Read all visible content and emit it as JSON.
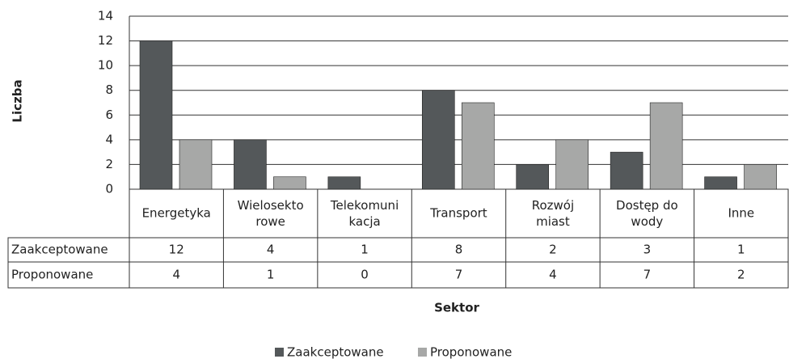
{
  "chart_data": {
    "type": "bar",
    "ylabel": "Liczba",
    "xlabel": "Sektor",
    "categories": [
      "Energetyka",
      "Wielosekto\nrowe",
      "Telekomuni\nkacja",
      "Transport",
      "Rozwój\nmiast",
      "Dostęp do\nwody",
      "Inne"
    ],
    "series": [
      {
        "name": "Zaakceptowane",
        "color": "#54585a",
        "values": [
          12,
          4,
          1,
          8,
          2,
          3,
          1
        ]
      },
      {
        "name": "Proponowane",
        "color": "#a7a8a7",
        "values": [
          4,
          1,
          0,
          7,
          4,
          7,
          2
        ]
      }
    ],
    "ylim": [
      0,
      14
    ],
    "yticks": [
      0,
      2,
      4,
      6,
      8,
      10,
      12,
      14
    ],
    "grid": true
  }
}
